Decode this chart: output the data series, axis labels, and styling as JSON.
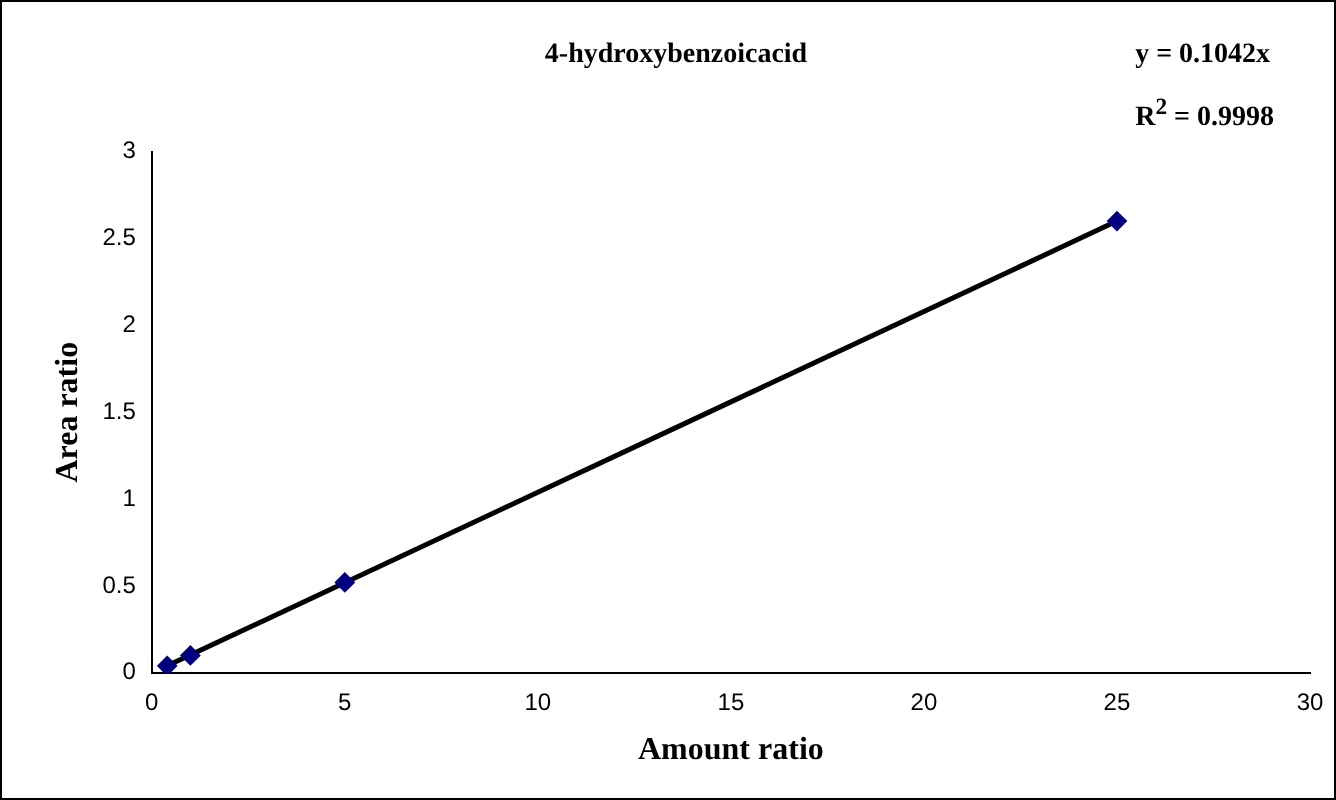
{
  "chart_data": {
    "type": "scatter",
    "title": "4-hydroxybenzoicacid",
    "xlabel": "Amount ratio",
    "ylabel": "Area ratio",
    "series": [
      {
        "type": "scatter",
        "color": "#000080",
        "marker": "diamond",
        "x": [
          0.4,
          1,
          5,
          25
        ],
        "values": [
          0.04,
          0.1,
          0.52,
          2.6
        ]
      },
      {
        "type": "line",
        "color": "#000000",
        "marker": "none",
        "line_style": "solid",
        "x": [
          0.4,
          25
        ],
        "values": [
          0.04,
          2.6
        ]
      }
    ],
    "xlim": [
      0,
      30
    ],
    "xticks": [
      0,
      5,
      10,
      15,
      20,
      25,
      30
    ],
    "ylim": [
      0,
      3
    ],
    "yticks": [
      0,
      0.5,
      1,
      1.5,
      2,
      2.5,
      3
    ],
    "grid": false,
    "legend": false,
    "annotations": [
      "y = 0.1042x",
      "R$^{2}$ = 0.9998"
    ]
  }
}
